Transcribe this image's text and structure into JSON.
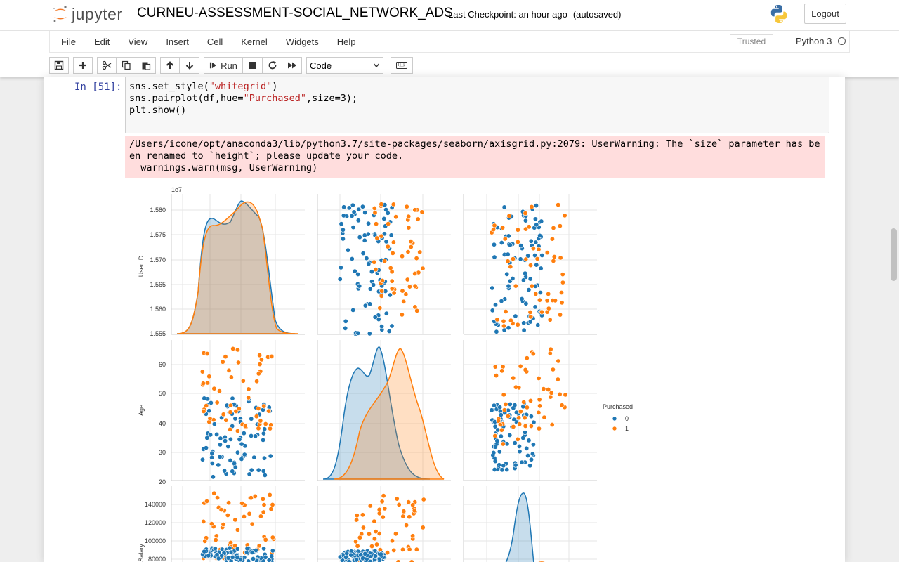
{
  "header": {
    "logo_text": "jupyter",
    "notebook_title": "CURNEU-ASSESSMENT-SOCIAL_NETWORK_ADS",
    "checkpoint": "Last Checkpoint: an hour ago",
    "autosave": "(autosaved)",
    "logout_label": "Logout"
  },
  "menu": {
    "items": [
      "File",
      "Edit",
      "View",
      "Insert",
      "Cell",
      "Kernel",
      "Widgets",
      "Help"
    ],
    "trusted": "Trusted",
    "kernel": "Python 3"
  },
  "toolbar": {
    "run_label": "Run",
    "cell_type": "Code",
    "icons": [
      "save-icon",
      "plus-icon",
      "cut-icon",
      "copy-icon",
      "paste-icon",
      "arrow-up-icon",
      "arrow-down-icon",
      "run-icon",
      "stop-icon",
      "restart-icon",
      "fast-forward-icon",
      "keyboard-icon"
    ]
  },
  "cell": {
    "prompt": "In [51]:",
    "code_lines": [
      {
        "pre": "sns.set_style(",
        "str": "\"whitegrid\"",
        "post": ")"
      },
      {
        "pre": "sns.pairplot(df,hue=",
        "str": "\"Purchased\"",
        "post": ",size=3);"
      },
      {
        "pre": "plt.show()",
        "str": "",
        "post": ""
      }
    ],
    "stderr": "/Users/icone/opt/anaconda3/lib/python3.7/site-packages/seaborn/axisgrid.py:2079: UserWarning: The `size` parameter has been renamed to `height`; please update your code.\n  warnings.warn(msg, UserWarning)"
  },
  "chart_data": {
    "type": "scatter",
    "variables": [
      "User ID",
      "Age",
      "EstimatedSalary"
    ],
    "visible_ylabels": [
      "User ID",
      "Age",
      "edSalary"
    ],
    "user_id_exponent": "1e7",
    "user_id_ticks": [
      "1.580",
      "1.575",
      "1.570",
      "1.565",
      "1.560",
      "1.555"
    ],
    "age_ticks": [
      "60",
      "50",
      "40",
      "30",
      "20"
    ],
    "salary_ticks": [
      "140000",
      "120000",
      "100000",
      "80000"
    ],
    "user_id_range": [
      1.555,
      1.583
    ],
    "age_range": [
      15,
      63
    ],
    "salary_range": [
      60000,
      155000
    ],
    "legend": {
      "title": "Purchased",
      "labels": [
        "0",
        "1"
      ],
      "placement": "right"
    },
    "colors": {
      "class_0": "#1f77b4",
      "class_1": "#ff7f0e"
    },
    "grid": true
  }
}
